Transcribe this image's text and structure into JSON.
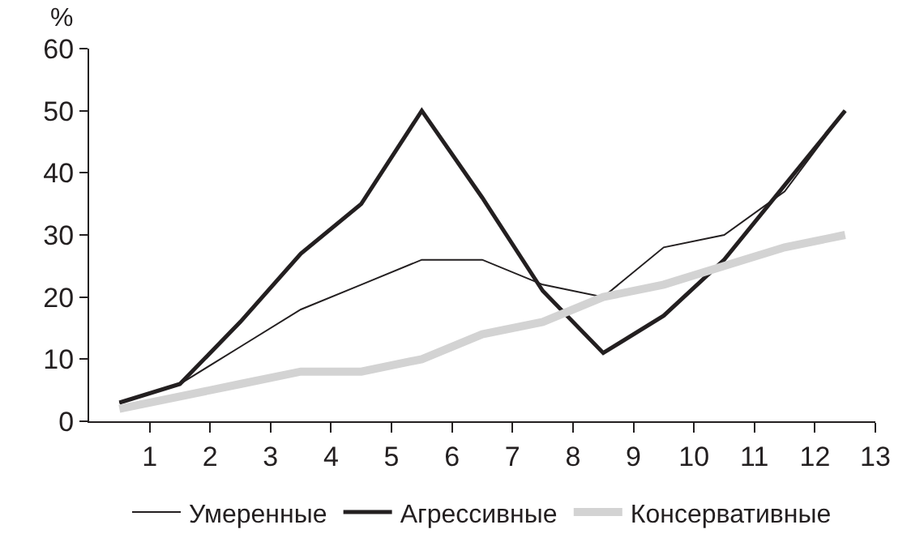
{
  "chart_data": {
    "type": "line",
    "ylabel": "%",
    "x": [
      0.5,
      1.5,
      2.5,
      3.5,
      4.5,
      5.5,
      6.5,
      7.5,
      8.5,
      9.5,
      10.5,
      11.5,
      12.5
    ],
    "series": [
      {
        "name": "Умеренные",
        "color": "#231f20",
        "values": [
          3,
          6,
          12,
          18,
          22,
          26,
          26,
          22,
          20,
          28,
          30,
          37,
          50
        ]
      },
      {
        "name": "Агрессивные",
        "color": "#231f20",
        "values": [
          3,
          6,
          16,
          27,
          35,
          50,
          36,
          21,
          11,
          17,
          26,
          38,
          50
        ]
      },
      {
        "name": "Консервативные",
        "color": "#d3d3d3",
        "values": [
          2,
          4,
          6,
          8,
          8,
          10,
          14,
          16,
          20,
          22,
          25,
          28,
          30
        ]
      }
    ],
    "xlim": [
      0,
      13
    ],
    "xticks": [
      1,
      2,
      3,
      4,
      5,
      6,
      7,
      8,
      9,
      10,
      11,
      12,
      13
    ],
    "ylim": [
      0,
      60
    ],
    "yticks": [
      0,
      10,
      20,
      30,
      40,
      50,
      60
    ],
    "legend": "bottom",
    "marker": "none",
    "line_style": "solid"
  }
}
